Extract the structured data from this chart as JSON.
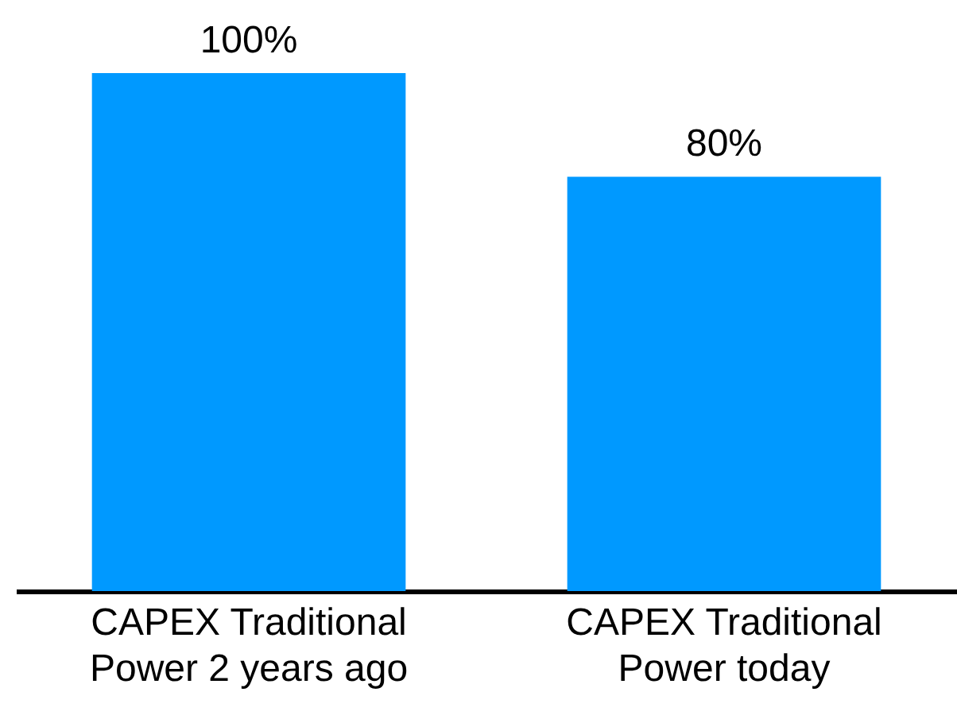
{
  "chart_data": {
    "type": "bar",
    "categories": [
      "CAPEX Traditional Power 2 years ago",
      "CAPEX Traditional Power today"
    ],
    "values": [
      100,
      80
    ],
    "value_labels": [
      "100%",
      "80%"
    ],
    "color": "#0099ff",
    "grid": false
  }
}
